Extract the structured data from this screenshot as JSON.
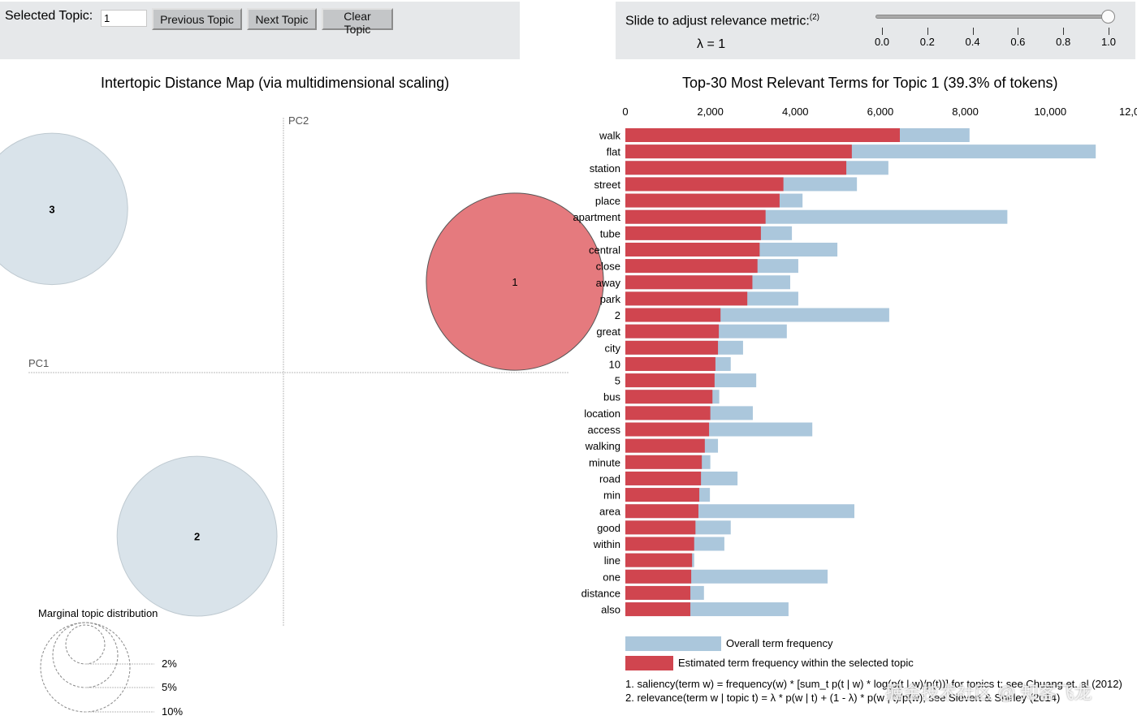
{
  "controls": {
    "selected_topic_label": "Selected Topic:",
    "selected_topic_value": "1",
    "previous_label": "Previous Topic",
    "next_label": "Next Topic",
    "clear_label": "Clear Topic"
  },
  "slider": {
    "label": "Slide to adjust relevance metric:",
    "footnote_ref": "(2)",
    "lambda_text": "λ = 1",
    "value": 1.0,
    "min": 0.0,
    "max": 1.0,
    "ticks": [
      "0.0",
      "0.2",
      "0.4",
      "0.6",
      "0.8",
      "1.0"
    ]
  },
  "colors": {
    "selected_topic": "#e57a7e",
    "unselected_topic": "#d5e0e8",
    "topic_bar": "#d0454f",
    "overall_bar": "#abc7dc"
  },
  "chart_data": [
    {
      "type": "scatter",
      "title": "Intertopic Distance Map (via multidimensional scaling)",
      "xlabel": "PC1",
      "ylabel": "PC2",
      "selected_topic": 1,
      "topics": [
        {
          "id": "1",
          "pc1": 0.75,
          "pc2": 0.35,
          "share_pct": 39.3,
          "selected": true
        },
        {
          "id": "2",
          "pc1": -0.28,
          "pc2": -0.63,
          "share_pct": 32.0,
          "selected": false
        },
        {
          "id": "3",
          "pc1": -0.75,
          "pc2": 0.63,
          "share_pct": 28.7,
          "selected": false
        }
      ],
      "size_legend": {
        "title": "Marginal topic distribution",
        "entries": [
          "2%",
          "5%",
          "10%"
        ]
      }
    },
    {
      "type": "bar",
      "orientation": "horizontal",
      "title": "Top-30 Most Relevant Terms for Topic 1 (39.3% of tokens)",
      "xlim": [
        0,
        12000
      ],
      "xticks": [
        "0",
        "2,000",
        "4,000",
        "6,000",
        "8,000",
        "10,000",
        "12,000"
      ],
      "categories": [
        "walk",
        "flat",
        "station",
        "street",
        "place",
        "apartment",
        "tube",
        "central",
        "close",
        "away",
        "park",
        "2",
        "great",
        "city",
        "10",
        "5",
        "bus",
        "location",
        "access",
        "walking",
        "minute",
        "road",
        "min",
        "area",
        "good",
        "within",
        "line",
        "one",
        "distance",
        "also"
      ],
      "series": [
        {
          "name": "Overall term frequency",
          "values": [
            8100,
            11070,
            6190,
            5450,
            4170,
            8990,
            3920,
            4990,
            4070,
            3880,
            4070,
            6210,
            3800,
            2770,
            2480,
            3080,
            2210,
            3000,
            4400,
            2180,
            2000,
            2640,
            1990,
            5390,
            2480,
            2330,
            1620,
            4760,
            1850,
            3840
          ]
        },
        {
          "name": "Estimated term frequency within the selected topic",
          "values": [
            6460,
            5330,
            5200,
            3720,
            3630,
            3300,
            3190,
            3160,
            3110,
            2990,
            2870,
            2240,
            2200,
            2180,
            2120,
            2100,
            2050,
            2000,
            1970,
            1870,
            1800,
            1780,
            1740,
            1720,
            1650,
            1620,
            1570,
            1550,
            1530,
            1530
          ]
        }
      ],
      "legend": [
        "Overall term frequency",
        "Estimated term frequency within the selected topic"
      ]
    }
  ],
  "footnotes": [
    "1. saliency(term w) = frequency(w) * [sum_t p(t | w) * log(p(t | w)/p(t))] for topics t; see Chuang et. al (2012)",
    "2. relevance(term w | topic t) = λ * p(w | t) + (1 - λ) * p(w | t)/p(w); see Sievert & Shirley (2014)"
  ],
  "watermark": "掘金技术社区 @ 知客飞龙"
}
